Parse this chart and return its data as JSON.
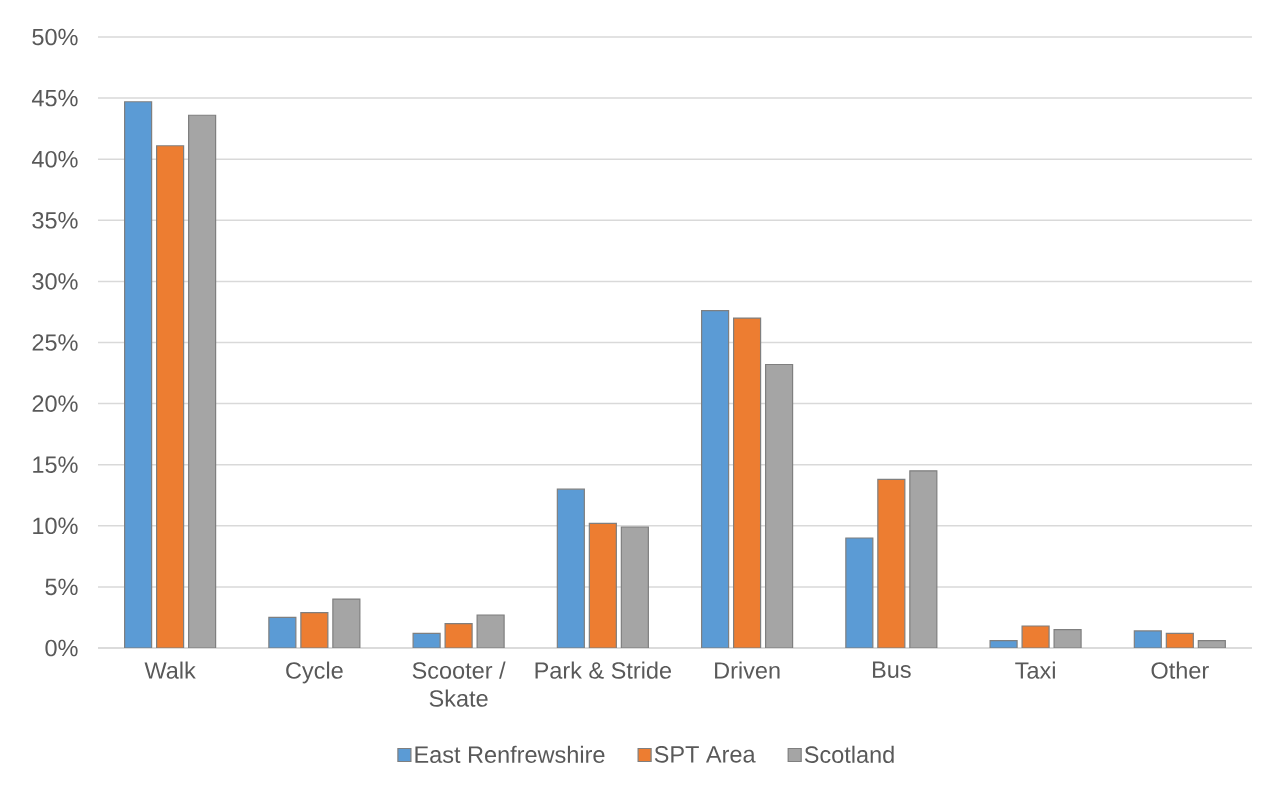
{
  "chart_data": {
    "type": "bar",
    "categories": [
      "Walk",
      "Cycle",
      "Scooter / Skate",
      "Park & Stride",
      "Driven",
      "Bus",
      "Taxi",
      "Other"
    ],
    "series": [
      {
        "name": "East Renfrewshire",
        "color": "#5b9bd5",
        "values": [
          44.7,
          2.5,
          1.2,
          13.0,
          27.6,
          9.0,
          0.6,
          1.4
        ]
      },
      {
        "name": "SPT Area",
        "color": "#ed7d31",
        "values": [
          41.1,
          2.9,
          2.0,
          10.2,
          27.0,
          13.8,
          1.8,
          1.2
        ]
      },
      {
        "name": "Scotland",
        "color": "#a5a5a5",
        "values": [
          43.6,
          4.0,
          2.7,
          9.9,
          23.2,
          14.5,
          1.5,
          0.6
        ]
      }
    ],
    "ylim": [
      0,
      50
    ],
    "yticks": [
      {
        "value": 0,
        "label": "0%"
      },
      {
        "value": 5,
        "label": "5%"
      },
      {
        "value": 10,
        "label": "10%"
      },
      {
        "value": 15,
        "label": "15%"
      },
      {
        "value": 20,
        "label": "20%"
      },
      {
        "value": 25,
        "label": "25%"
      },
      {
        "value": 30,
        "label": "30%"
      },
      {
        "value": 35,
        "label": "35%"
      },
      {
        "value": 40,
        "label": "40%"
      },
      {
        "value": 45,
        "label": "45%"
      },
      {
        "value": 50,
        "label": "50%"
      }
    ],
    "grid": "y",
    "legend": "bottom"
  }
}
